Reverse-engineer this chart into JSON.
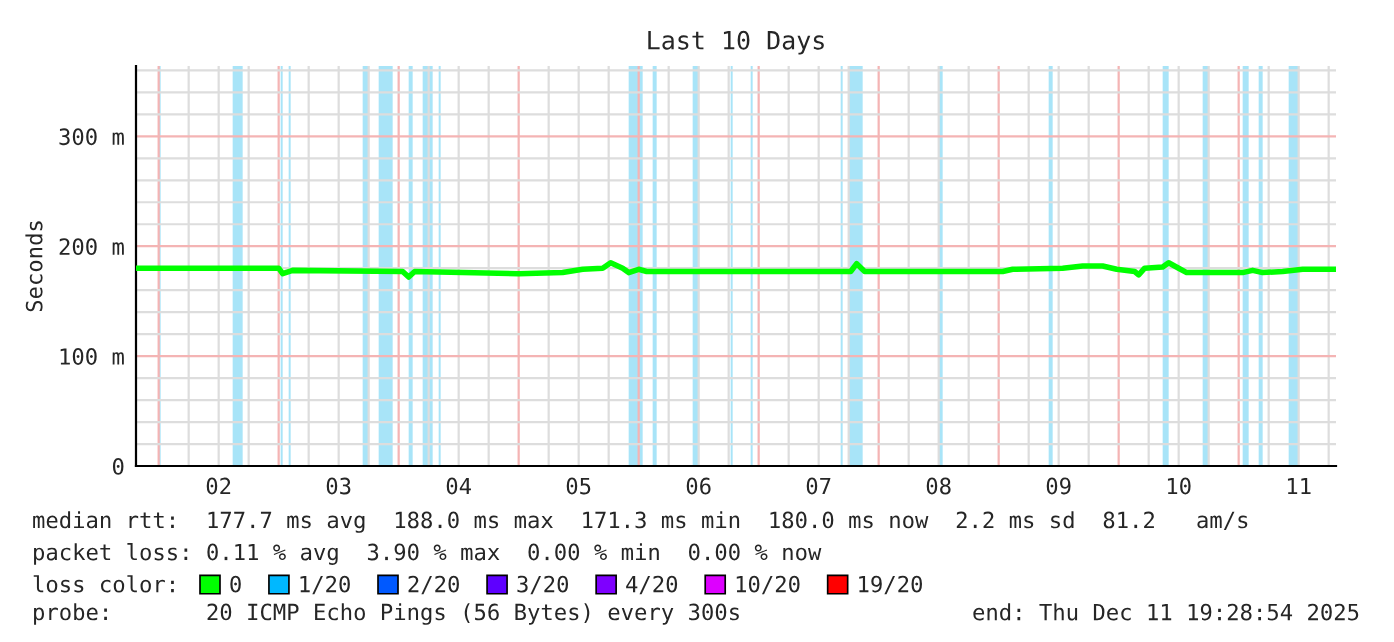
{
  "chart_data": {
    "type": "line",
    "title": "Last 10 Days",
    "ylabel": "Seconds",
    "x": [
      "2025-12-01T19:28",
      "2025-12-03T00:00",
      "2025-12-03T00:48",
      "2025-12-03T02:48",
      "2025-12-04T00:48",
      "2025-12-04T02:00",
      "2025-12-04T03:12",
      "2025-12-05T00:00",
      "2025-12-05T08:48",
      "2025-12-05T12:48",
      "2025-12-05T16:48",
      "2025-12-05T18:24",
      "2025-12-05T20:48",
      "2025-12-05T22:00",
      "2025-12-06T00:00",
      "2025-12-06T01:36",
      "2025-12-07T18:24",
      "2025-12-07T19:36",
      "2025-12-07T21:12",
      "2025-12-09T00:48",
      "2025-12-09T02:48",
      "2025-12-09T12:48",
      "2025-12-09T16:48",
      "2025-12-09T20:48",
      "2025-12-09T23:36",
      "2025-12-10T03:12",
      "2025-12-10T04:00",
      "2025-12-10T05:12",
      "2025-12-10T08:48",
      "2025-12-10T10:00",
      "2025-12-10T12:00",
      "2025-12-10T13:36",
      "2025-12-11T00:48",
      "2025-12-11T02:48",
      "2025-12-11T04:48",
      "2025-12-11T08:48",
      "2025-12-11T12:48",
      "2025-12-11T19:28"
    ],
    "series": [
      {
        "name": "0",
        "color": "#00ff00",
        "values": [
          180,
          180,
          175,
          178,
          177,
          172,
          177,
          175,
          176,
          179,
          180,
          185,
          180,
          176,
          179,
          177,
          177,
          184,
          177,
          177,
          179,
          180,
          182,
          182,
          179,
          177,
          174,
          180,
          181,
          185,
          180,
          176,
          176,
          178,
          176,
          177,
          179,
          179
        ]
      },
      {
        "name": "1/20",
        "color": "#00b8ff",
        "values": [
          null,
          null,
          null,
          null,
          null,
          null,
          null,
          null,
          null,
          null,
          null,
          null,
          null,
          null,
          null,
          null,
          null,
          null,
          null,
          null,
          null,
          null,
          null,
          null,
          null,
          null,
          null,
          null,
          null,
          null,
          null,
          null,
          null,
          null,
          null,
          null,
          null,
          null
        ]
      },
      {
        "name": "2/20",
        "color": "#0059ff",
        "values": [
          null,
          null,
          null,
          null,
          null,
          null,
          null,
          null,
          null,
          null,
          null,
          null,
          null,
          null,
          null,
          null,
          null,
          null,
          null,
          null,
          null,
          null,
          null,
          null,
          null,
          null,
          null,
          null,
          null,
          null,
          null,
          null,
          null,
          null,
          null,
          null,
          null,
          null
        ]
      },
      {
        "name": "3/20",
        "color": "#5e00ff",
        "values": [
          null,
          null,
          null,
          null,
          null,
          null,
          null,
          null,
          null,
          null,
          null,
          null,
          null,
          null,
          null,
          null,
          null,
          null,
          null,
          null,
          null,
          null,
          null,
          null,
          null,
          null,
          null,
          null,
          null,
          null,
          null,
          null,
          null,
          null,
          null,
          null,
          null,
          null
        ]
      },
      {
        "name": "4/20",
        "color": "#7e00ff",
        "values": [
          null,
          null,
          null,
          null,
          null,
          null,
          null,
          null,
          null,
          null,
          null,
          null,
          null,
          null,
          null,
          null,
          null,
          null,
          null,
          null,
          null,
          null,
          null,
          null,
          null,
          null,
          null,
          null,
          null,
          null,
          null,
          null,
          null,
          null,
          null,
          null,
          null,
          null
        ]
      },
      {
        "name": "10/20",
        "color": "#dd00ff",
        "values": [
          null,
          null,
          null,
          null,
          null,
          null,
          null,
          null,
          null,
          null,
          null,
          null,
          null,
          null,
          null,
          null,
          null,
          null,
          null,
          null,
          null,
          null,
          null,
          null,
          null,
          null,
          null,
          null,
          null,
          null,
          null,
          null,
          null,
          null,
          null,
          null,
          null,
          null
        ]
      },
      {
        "name": "19/20",
        "color": "#ff0000",
        "values": [
          null,
          null,
          null,
          null,
          null,
          null,
          null,
          null,
          null,
          null,
          null,
          null,
          null,
          null,
          null,
          null,
          null,
          null,
          null,
          null,
          null,
          null,
          null,
          null,
          null,
          null,
          null,
          null,
          null,
          null,
          null,
          null,
          null,
          null,
          null,
          null,
          null,
          null
        ]
      }
    ],
    "xlim": [
      "2025-12-01T19:28",
      "2025-12-11T19:28"
    ],
    "xticks": [
      {
        "value": "2025-12-02T12:00",
        "label": "02"
      },
      {
        "value": "2025-12-03T12:00",
        "label": "03"
      },
      {
        "value": "2025-12-04T12:00",
        "label": "04"
      },
      {
        "value": "2025-12-05T12:00",
        "label": "05"
      },
      {
        "value": "2025-12-06T12:00",
        "label": "06"
      },
      {
        "value": "2025-12-07T12:00",
        "label": "07"
      },
      {
        "value": "2025-12-08T12:00",
        "label": "08"
      },
      {
        "value": "2025-12-09T12:00",
        "label": "09"
      },
      {
        "value": "2025-12-10T12:00",
        "label": "10"
      },
      {
        "value": "2025-12-11T12:00",
        "label": "11"
      }
    ],
    "ylim": [
      0,
      364
    ],
    "yticks": [
      0,
      {
        "value": 100,
        "label": "100 m"
      },
      {
        "value": 200,
        "label": "200 m"
      },
      {
        "value": 300,
        "label": "300 m"
      }
    ],
    "bands": [
      {
        "axis": "x",
        "from": "2025-12-02T00:00",
        "to": "2025-12-02T00:24",
        "color": "#a8e4f8"
      },
      {
        "axis": "x",
        "from": "2025-12-02T14:48",
        "to": "2025-12-02T16:48",
        "color": "#a8e4f8"
      },
      {
        "axis": "x",
        "from": "2025-12-03T00:24",
        "to": "2025-12-03T00:48",
        "color": "#a8e4f8"
      },
      {
        "axis": "x",
        "from": "2025-12-03T02:00",
        "to": "2025-12-03T02:24",
        "color": "#a8e4f8"
      },
      {
        "axis": "x",
        "from": "2025-12-03T16:48",
        "to": "2025-12-03T18:00",
        "color": "#a8e4f8"
      },
      {
        "axis": "x",
        "from": "2025-12-03T20:00",
        "to": "2025-12-03T22:48",
        "color": "#a8e4f8"
      },
      {
        "axis": "x",
        "from": "2025-12-04T02:00",
        "to": "2025-12-04T02:48",
        "color": "#a8e4f8"
      },
      {
        "axis": "x",
        "from": "2025-12-04T04:48",
        "to": "2025-12-04T06:48",
        "color": "#a8e4f8"
      },
      {
        "axis": "x",
        "from": "2025-12-04T08:00",
        "to": "2025-12-04T08:24",
        "color": "#a8e4f8"
      },
      {
        "axis": "x",
        "from": "2025-12-05T22:00",
        "to": "2025-12-06T00:48",
        "color": "#a8e4f8"
      },
      {
        "axis": "x",
        "from": "2025-12-06T02:48",
        "to": "2025-12-06T03:36",
        "color": "#a8e4f8"
      },
      {
        "axis": "x",
        "from": "2025-12-06T10:48",
        "to": "2025-12-06T12:00",
        "color": "#a8e4f8"
      },
      {
        "axis": "x",
        "from": "2025-12-06T18:24",
        "to": "2025-12-06T18:48",
        "color": "#a8e4f8"
      },
      {
        "axis": "x",
        "from": "2025-12-06T22:24",
        "to": "2025-12-06T22:48",
        "color": "#a8e4f8"
      },
      {
        "axis": "x",
        "from": "2025-12-07T16:24",
        "to": "2025-12-07T16:48",
        "color": "#a8e4f8"
      },
      {
        "axis": "x",
        "from": "2025-12-07T18:00",
        "to": "2025-12-07T20:48",
        "color": "#a8e4f8"
      },
      {
        "axis": "x",
        "from": "2025-12-08T12:00",
        "to": "2025-12-08T12:48",
        "color": "#a8e4f8"
      },
      {
        "axis": "x",
        "from": "2025-12-09T10:00",
        "to": "2025-12-09T10:48",
        "color": "#a8e4f8"
      },
      {
        "axis": "x",
        "from": "2025-12-10T08:48",
        "to": "2025-12-10T10:00",
        "color": "#a8e4f8"
      },
      {
        "axis": "x",
        "from": "2025-12-10T16:48",
        "to": "2025-12-10T18:00",
        "color": "#a8e4f8"
      },
      {
        "axis": "x",
        "from": "2025-12-11T00:48",
        "to": "2025-12-11T02:00",
        "color": "#a8e4f8"
      },
      {
        "axis": "x",
        "from": "2025-12-11T04:00",
        "to": "2025-12-11T04:48",
        "color": "#a8e4f8"
      },
      {
        "axis": "x",
        "from": "2025-12-11T10:00",
        "to": "2025-12-11T12:00",
        "color": "#a8e4f8"
      }
    ],
    "grid": true,
    "legend": "bottom",
    "legend_title": "loss color:",
    "annotations": [
      "median rtt:  177.7 ms avg  188.0 ms max  171.3 ms min  180.0 ms now  2.2 ms sd  81.2   am/s",
      "packet loss: 0.11 % avg  3.90 % max  0.00 % min  0.00 % now",
      "probe:       20 ICMP Echo Pings (56 Bytes) every 300s",
      "end: Thu Dec 11 19:28:54 2025"
    ]
  }
}
